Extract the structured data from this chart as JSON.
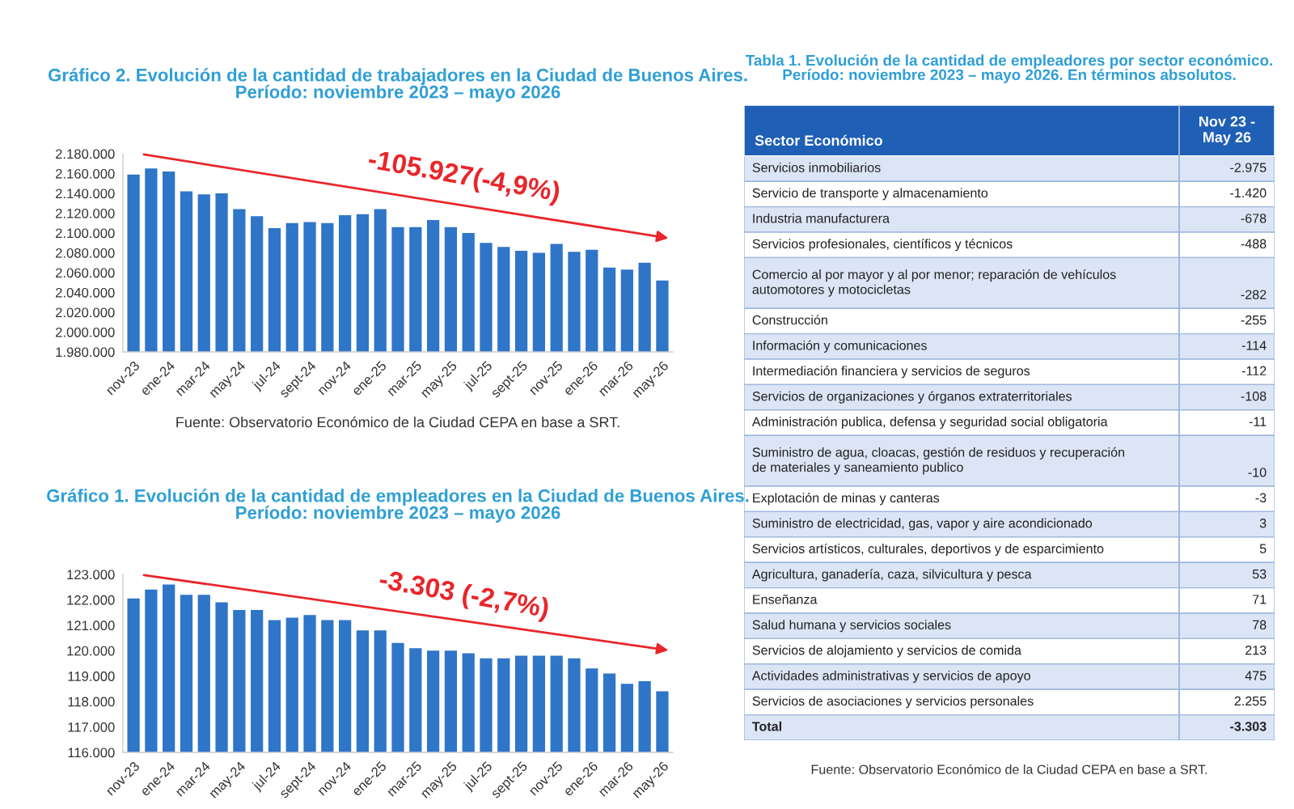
{
  "chart_data": [
    {
      "type": "bar",
      "title": "Gráfico 2. Evolución de la cantidad de trabajadores en la Ciudad de Buenos Aires.",
      "subtitle": "Período: noviembre 2023 – mayo 2026",
      "categories": [
        "nov-23",
        null,
        "ene-24",
        null,
        "mar-24",
        null,
        "may-24",
        null,
        "jul-24",
        null,
        "sept-24",
        null,
        "nov-24",
        null,
        "ene-25",
        null,
        "mar-25",
        null,
        "may-25",
        null,
        "jul-25",
        null,
        "sept-25",
        null,
        "nov-25",
        null,
        "ene-26",
        null,
        "mar-26",
        null,
        "may-26"
      ],
      "values": [
        2159000,
        2165000,
        2162000,
        2142000,
        2139000,
        2140000,
        2124000,
        2117000,
        2105000,
        2110000,
        2111000,
        2110000,
        2118000,
        2119000,
        2124000,
        2106000,
        2106000,
        2113000,
        2106000,
        2100000,
        2090000,
        2086000,
        2082000,
        2080000,
        2089000,
        2081000,
        2083000,
        2065000,
        2063000,
        2070000,
        2052000
      ],
      "color": "#2f75c8",
      "ylim": [
        1980000,
        2180000
      ],
      "yticks": [
        {
          "value": 1980000,
          "label": "1.980.000"
        },
        {
          "value": 2000000,
          "label": "2.000.000"
        },
        {
          "value": 2020000,
          "label": "2.020.000"
        },
        {
          "value": 2040000,
          "label": "2.040.000"
        },
        {
          "value": 2060000,
          "label": "2.060.000"
        },
        {
          "value": 2080000,
          "label": "2.080.000"
        },
        {
          "value": 2100000,
          "label": "2.100.000"
        },
        {
          "value": 2120000,
          "label": "2.120.000"
        },
        {
          "value": 2140000,
          "label": "2.140.000"
        },
        {
          "value": 2160000,
          "label": "2.160.000"
        },
        {
          "value": 2180000,
          "label": "2.180.000"
        }
      ],
      "grid": false,
      "annotations": [
        "-105.927(-4,9%)",
        "Fuente: Observatorio Económico de la Ciudad CEPA en base a SRT."
      ]
    },
    {
      "type": "bar",
      "title": "Gráfico 1. Evolución de la cantidad de empleadores en la Ciudad de Buenos Aires.",
      "subtitle": "Período: noviembre 2023 – mayo 2026",
      "categories": [
        "nov-23",
        null,
        "ene-24",
        null,
        "mar-24",
        null,
        "may-24",
        null,
        "jul-24",
        null,
        "sept-24",
        null,
        "nov-24",
        null,
        "ene-25",
        null,
        "mar-25",
        null,
        "may-25",
        null,
        "jul-25",
        null,
        "sept-25",
        null,
        "nov-25",
        null,
        "ene-26",
        null,
        "mar-26",
        null,
        "may-26"
      ],
      "values": [
        122050,
        122400,
        122600,
        122200,
        122200,
        121900,
        121600,
        121600,
        121200,
        121300,
        121400,
        121200,
        121200,
        120800,
        120800,
        120300,
        120100,
        120000,
        120000,
        119900,
        119700,
        119700,
        119800,
        119800,
        119800,
        119700,
        119300,
        119100,
        118700,
        118800,
        118400
      ],
      "color": "#2f75c8",
      "ylim": [
        116000,
        123000
      ],
      "yticks": [
        {
          "value": 116000,
          "label": "116.000"
        },
        {
          "value": 117000,
          "label": "117.000"
        },
        {
          "value": 118000,
          "label": "118.000"
        },
        {
          "value": 119000,
          "label": "119.000"
        },
        {
          "value": 120000,
          "label": "120.000"
        },
        {
          "value": 121000,
          "label": "121.000"
        },
        {
          "value": 122000,
          "label": "122.000"
        },
        {
          "value": 123000,
          "label": "123.000"
        }
      ],
      "grid": false,
      "annotations": [
        "-3.303 (-2,7%)"
      ]
    },
    {
      "type": "other",
      "title": "Tabla 1. Evolución de la cantidad de empleadores por sector económico.",
      "subtitle": "Período: noviembre 2023 – mayo 2026. En términos absolutos.",
      "categories": [
        "Servicios inmobiliarios",
        "Servicio de transporte y almacenamiento",
        "Industria manufacturera",
        "Servicios profesionales, científicos y técnicos",
        "Comercio al por mayor y al por menor; reparación de vehículos automotores y motocicletas",
        "Construcción",
        "Información y comunicaciones",
        "Intermediación financiera y servicios de seguros",
        "Servicios de organizaciones y órganos extraterritoriales",
        "Administración publica, defensa y seguridad social obligatoria",
        "Suministro de agua, cloacas, gestión de residuos y recuperación de materiales y saneamiento publico",
        "Explotación de minas y canteras",
        "Suministro de electricidad, gas, vapor y aire acondicionado",
        "Servicios artísticos, culturales, deportivos y de esparcimiento",
        "Agricultura, ganadería, caza, silvicultura y pesca",
        "Enseñanza",
        "Salud humana y servicios sociales",
        "Servicios de alojamiento y servicios de comida",
        "Actividades administrativas y servicios de apoyo",
        "Servicios de asociaciones y servicios personales",
        "Total"
      ],
      "values": [
        -2975,
        -1420,
        -678,
        -488,
        -282,
        -255,
        -114,
        -112,
        -108,
        -11,
        -10,
        -3,
        3,
        5,
        53,
        71,
        78,
        213,
        475,
        2255,
        -3303
      ],
      "value_labels": [
        "-2.975",
        "-1.420",
        "-678",
        "-488",
        "-282",
        "-255",
        "-114",
        "-112",
        "-108",
        "-11",
        "-10",
        "-3",
        "3",
        "5",
        "53",
        "71",
        "78",
        "213",
        "475",
        "2.255",
        "-3.303"
      ],
      "colors": [
        "#dbe5f5",
        "#ffffff",
        "#dbe5f5",
        "#ffffff",
        "#dbe5f5",
        "#ffffff",
        "#dbe5f5",
        "#ffffff",
        "#dbe5f5",
        "#ffffff",
        "#dbe5f5",
        "#ffffff",
        "#dbe5f5",
        "#ffffff",
        "#dbe5f5",
        "#ffffff",
        "#dbe5f5",
        "#ffffff",
        "#dbe5f5",
        "#ffffff",
        "#dbe5f5"
      ],
      "annotations": [
        "Sector Económico",
        "Nov 23 -\nMay 26",
        "Fuente: Observatorio Económico de la Ciudad CEPA en base a SRT."
      ]
    }
  ]
}
